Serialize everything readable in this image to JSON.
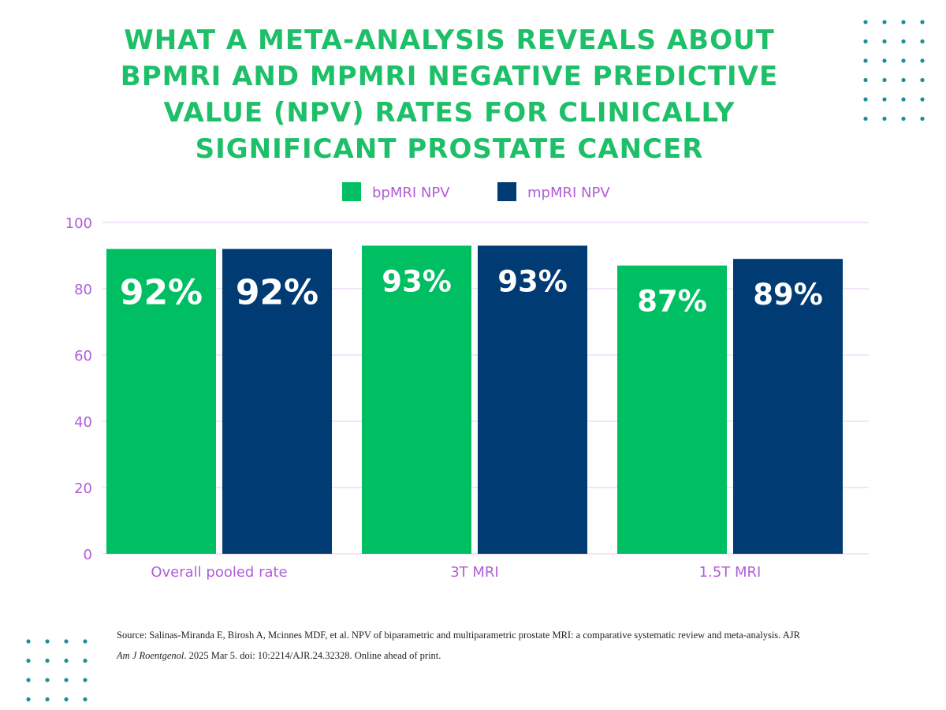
{
  "title": "WHAT A META-ANALYSIS REVEALS ABOUT BPMRI AND MPMRI NEGATIVE PREDICTIVE VALUE (NPV) RATES FOR CLINICALLY SIGNIFICANT PROSTATE CANCER",
  "colors": {
    "title": "#1dbf68",
    "bpmri": "#00bf63",
    "mpmri": "#003b73",
    "axis_text": "#b05ed6",
    "grid": "#efdcf6",
    "dots": "#1e8f96"
  },
  "chart_data": {
    "type": "bar",
    "title": "WHAT A META-ANALYSIS REVEALS ABOUT BPMRI AND MPMRI NEGATIVE PREDICTIVE VALUE (NPV) RATES FOR CLINICALLY SIGNIFICANT PROSTATE CANCER",
    "categories": [
      "Overall pooled rate",
      "3T MRI",
      "1.5T MRI"
    ],
    "series": [
      {
        "name": "bpMRI NPV",
        "values": [
          92,
          93,
          87
        ],
        "labels": [
          "92%",
          "93%",
          "87%"
        ],
        "color": "#00bf63"
      },
      {
        "name": "mpMRI NPV",
        "values": [
          92,
          93,
          89
        ],
        "labels": [
          "92%",
          "93%",
          "89%"
        ],
        "color": "#003b73"
      }
    ],
    "ylim": [
      0,
      100
    ],
    "yticks": [
      0,
      20,
      40,
      60,
      80,
      100
    ],
    "xlabel": "",
    "ylabel": "",
    "grid": true,
    "legend_position": "top-center"
  },
  "source": {
    "line1": "Source: Salinas-Miranda E, Birosh A, Mcinnes MDF, et al. NPV of biparametric and multiparametric prostate MRI: a comparative systematic review and meta-analysis. AJR",
    "journal": "Am J Roentgenol",
    "line2_rest": ". 2025 Mar 5. doi: 10:2214/AJR.24.32328. Online ahead of print."
  }
}
